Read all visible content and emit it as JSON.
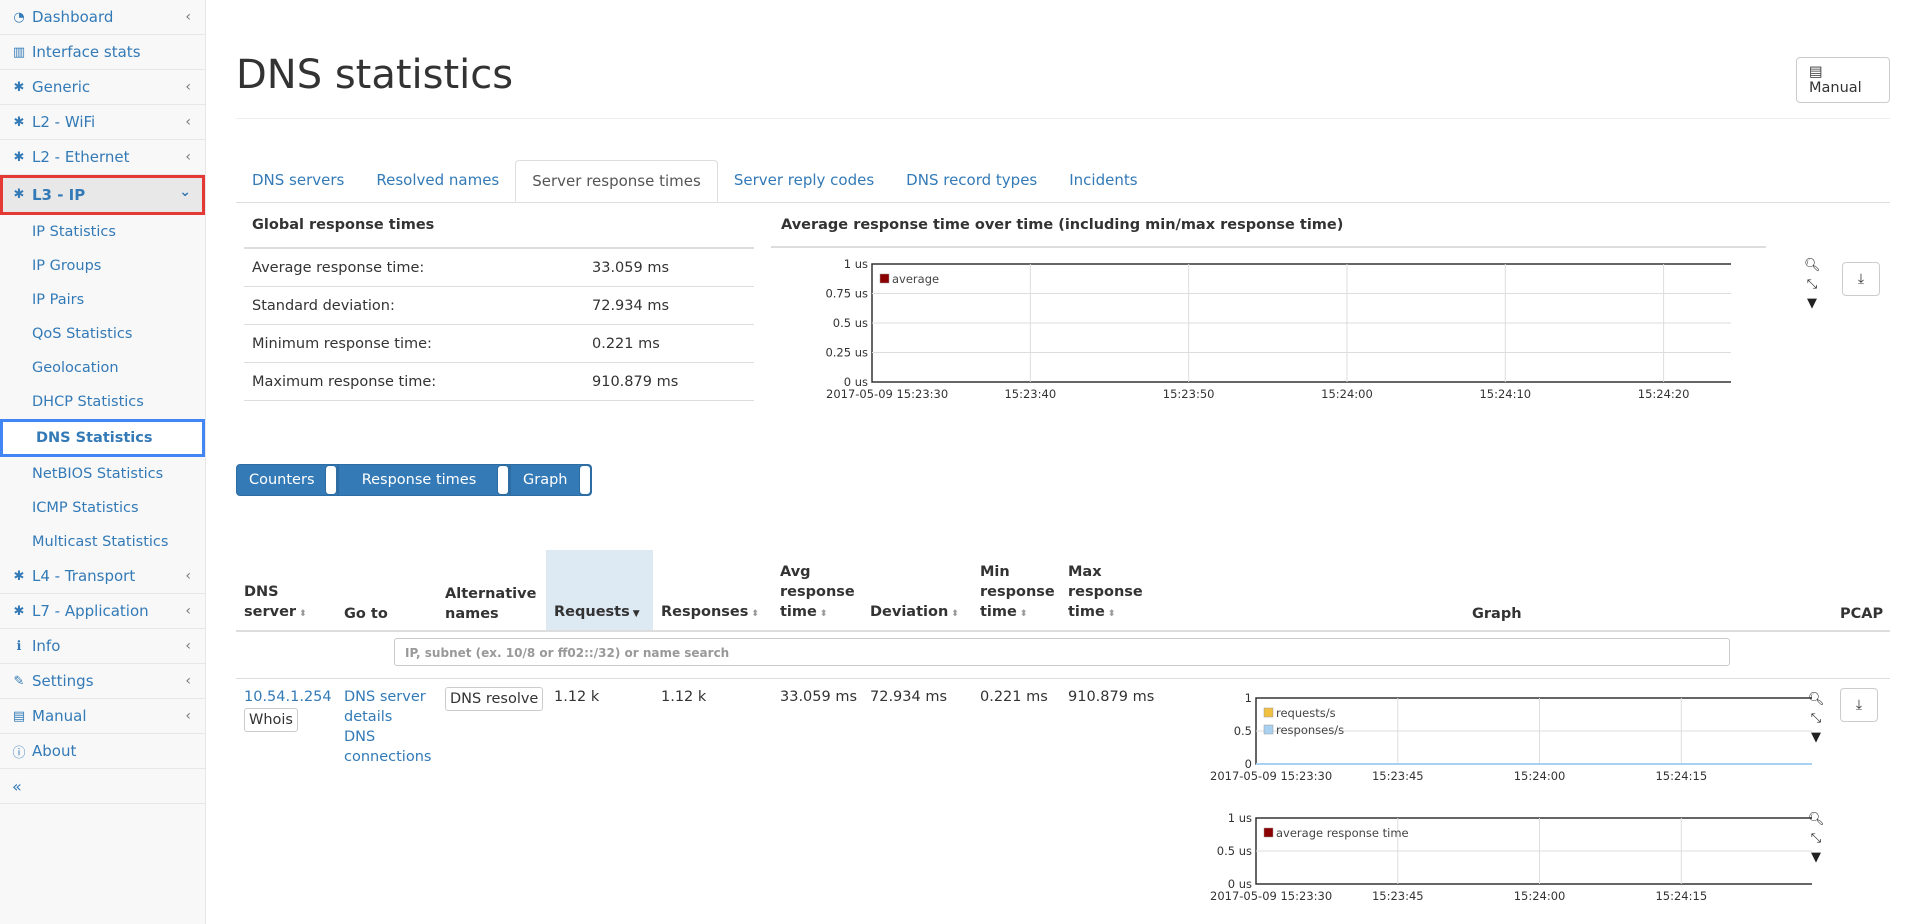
{
  "sidebar": {
    "items": [
      {
        "label": "Dashboard",
        "icon": "dashboard-icon",
        "glyph": "◔",
        "chevron": "‹"
      },
      {
        "label": "Interface stats",
        "icon": "bar-chart-icon",
        "glyph": "▥",
        "chevron": ""
      },
      {
        "label": "Generic",
        "icon": "gear-icon",
        "glyph": "✱",
        "chevron": "‹"
      },
      {
        "label": "L2 - WiFi",
        "icon": "gear-icon",
        "glyph": "✱",
        "chevron": "‹"
      },
      {
        "label": "L2 - Ethernet",
        "icon": "gear-icon",
        "glyph": "✱",
        "chevron": "‹"
      }
    ],
    "active_item": {
      "label": "L3 - IP",
      "icon": "gear-icon",
      "glyph": "✱",
      "chevron": "⌄"
    },
    "sub_items": [
      "IP Statistics",
      "IP Groups",
      "IP Pairs",
      "QoS Statistics",
      "Geolocation",
      "DHCP Statistics"
    ],
    "active_sub_item": "DNS Statistics",
    "sub_items_after": [
      "NetBIOS Statistics",
      "ICMP Statistics",
      "Multicast Statistics"
    ],
    "items_after": [
      {
        "label": "L4 - Transport",
        "icon": "gear-icon",
        "glyph": "✱",
        "chevron": "‹"
      },
      {
        "label": "L7 - Application",
        "icon": "gear-icon",
        "glyph": "✱",
        "chevron": "‹"
      },
      {
        "label": "Info",
        "icon": "info-icon",
        "glyph": "ℹ",
        "chevron": "‹"
      },
      {
        "label": "Settings",
        "icon": "wrench-icon",
        "glyph": "✎",
        "chevron": "‹"
      },
      {
        "label": "Manual",
        "icon": "book-icon",
        "glyph": "▤",
        "chevron": "‹"
      },
      {
        "label": "About",
        "icon": "info-circle-icon",
        "glyph": "ⓘ",
        "chevron": ""
      }
    ],
    "collapse_label": "«"
  },
  "header": {
    "title": "DNS statistics",
    "manual_button": "Manual",
    "manual_icon_glyph": "▤"
  },
  "tabs": [
    {
      "label": "DNS servers",
      "active": false
    },
    {
      "label": "Resolved names",
      "active": false
    },
    {
      "label": "Server response times",
      "active": true
    },
    {
      "label": "Server reply codes",
      "active": false
    },
    {
      "label": "DNS record types",
      "active": false
    },
    {
      "label": "Incidents",
      "active": false
    }
  ],
  "global_response": {
    "title": "Global response times",
    "rows": [
      {
        "label": "Average response time:",
        "value": "33.059 ms"
      },
      {
        "label": "Standard deviation:",
        "value": "72.934 ms"
      },
      {
        "label": "Minimum response time:",
        "value": "0.221 ms"
      },
      {
        "label": "Maximum response time:",
        "value": "910.879 ms"
      }
    ]
  },
  "chart_data": [
    {
      "type": "line",
      "title": "Average response time over time (including min/max response time)",
      "series": [
        {
          "name": "average",
          "color": "#8b0000",
          "values": []
        }
      ],
      "y_ticks": [
        "1 us",
        "0.75 us",
        "0.5 us",
        "0.25 us",
        "0 us"
      ],
      "x_ticks": [
        "2017-05-09 15:23:30",
        "15:23:40",
        "15:23:50",
        "15:24:00",
        "15:24:10",
        "15:24:20"
      ],
      "ylim": [
        0,
        1
      ],
      "legend": "top-left"
    },
    {
      "type": "line",
      "series": [
        {
          "name": "requests/s",
          "color": "#f0c040",
          "values": [
            0,
            0,
            0,
            0
          ]
        },
        {
          "name": "responses/s",
          "color": "#a8d0f0",
          "values": [
            0,
            0,
            0,
            0
          ]
        }
      ],
      "y_ticks": [
        "1",
        "0.5",
        "0"
      ],
      "x_ticks": [
        "2017-05-09 15:23:30",
        "15:23:45",
        "15:24:00",
        "15:24:15"
      ],
      "ylim": [
        0,
        1
      ],
      "legend": "top-left"
    },
    {
      "type": "line",
      "series": [
        {
          "name": "average response time",
          "color": "#8b0000",
          "values": []
        }
      ],
      "y_ticks": [
        "1 us",
        "0.5 us",
        "0 us"
      ],
      "x_ticks": [
        "2017-05-09 15:23:30",
        "15:23:45",
        "15:24:00",
        "15:24:15"
      ],
      "ylim": [
        0,
        1
      ],
      "legend": "top-left"
    }
  ],
  "view_buttons": [
    "Counters",
    "Response times",
    "Graph"
  ],
  "table": {
    "headers": {
      "dns_server_1": "DNS",
      "dns_server_2": "server",
      "goto": "Go to",
      "alt_1": "Alternative",
      "alt_2": "names",
      "requests": "Requests",
      "responses": "Responses",
      "avg_1": "Avg",
      "avg_2": "response",
      "avg_3": "time",
      "deviation": "Deviation",
      "min_1": "Min",
      "min_2": "response",
      "min_3": "time",
      "max_1": "Max",
      "max_2": "response",
      "max_3": "time",
      "graph": "Graph",
      "pcap": "PCAP"
    },
    "filter_placeholder": "IP, subnet (ex. 10/8 or ff02::/32) or name search",
    "row": {
      "dns_server": "10.54.1.254",
      "whois": "Whois",
      "goto_1": "DNS server",
      "goto_2": "details",
      "goto_3": "DNS",
      "goto_4": "connections",
      "alt_button": "DNS resolve",
      "requests": "1.12 k",
      "responses": "1.12 k",
      "avg": "33.059 ms",
      "deviation": "72.934 ms",
      "min": "0.221 ms",
      "max": "910.879 ms"
    }
  }
}
